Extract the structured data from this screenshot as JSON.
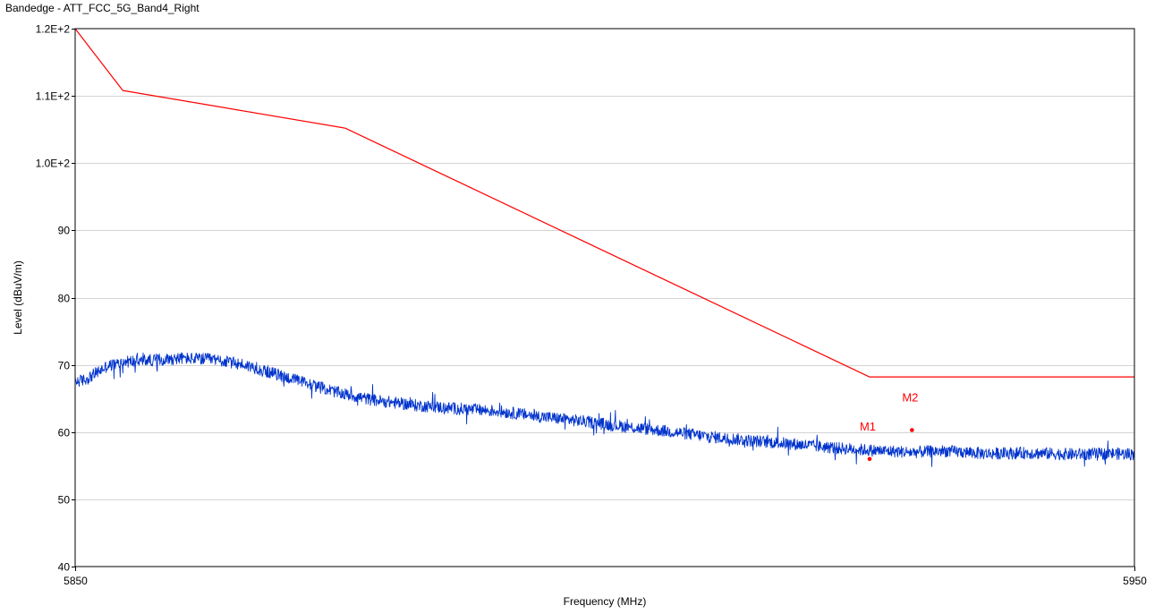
{
  "window": {
    "title": "Bandedge - ATT_FCC_5G_Band4_Right"
  },
  "chart_data": {
    "type": "line",
    "title": "Bandedge - ATT_FCC_5G_Band4_Right",
    "xlabel": "Frequency (MHz)",
    "ylabel": "Level (dBuV/m)",
    "xlim": [
      5850,
      5950
    ],
    "ylim": [
      40,
      120
    ],
    "x_ticks": [
      5850,
      5950
    ],
    "x_tick_labels": [
      "5850",
      "5950"
    ],
    "y_ticks": [
      40,
      50,
      60,
      70,
      80,
      90,
      100,
      110,
      120
    ],
    "y_tick_labels": [
      "40",
      "50",
      "60",
      "70",
      "80",
      "90",
      "1.0E+2",
      "1.1E+2",
      "1.2E+2"
    ],
    "grid": "horizontal",
    "colors": {
      "limit": "#ff0000",
      "measurement": "#0033cc",
      "marker": "#ff0000",
      "grid": "#d4d4d4",
      "axis": "#000000"
    },
    "series": [
      {
        "role": "limit",
        "x": [
          5850,
          5854.5,
          5875.5,
          5925,
          5950
        ],
        "values": [
          120,
          110.8,
          105.2,
          68.2,
          68.2
        ]
      },
      {
        "role": "measurement",
        "x": [
          5850,
          5851,
          5852,
          5853,
          5855,
          5857,
          5860,
          5863,
          5866,
          5869,
          5872,
          5875,
          5878,
          5882,
          5886,
          5890,
          5894,
          5898,
          5902,
          5906,
          5910,
          5914,
          5918,
          5922,
          5925,
          5929,
          5932,
          5936,
          5940,
          5944,
          5948,
          5950
        ],
        "values": [
          67.5,
          67.8,
          68.8,
          69.8,
          70.5,
          70.7,
          71.0,
          70.8,
          70.0,
          68.6,
          67.2,
          65.8,
          64.8,
          64.0,
          63.5,
          63.1,
          62.3,
          61.6,
          60.8,
          60.1,
          59.3,
          58.7,
          58.2,
          57.6,
          57.3,
          57.0,
          57.2,
          56.8,
          56.9,
          56.7,
          56.8,
          56.7
        ]
      }
    ],
    "markers": [
      {
        "label": "M1",
        "x": 5925,
        "y": 56.0
      },
      {
        "label": "M2",
        "x": 5929,
        "y": 60.3
      }
    ]
  }
}
